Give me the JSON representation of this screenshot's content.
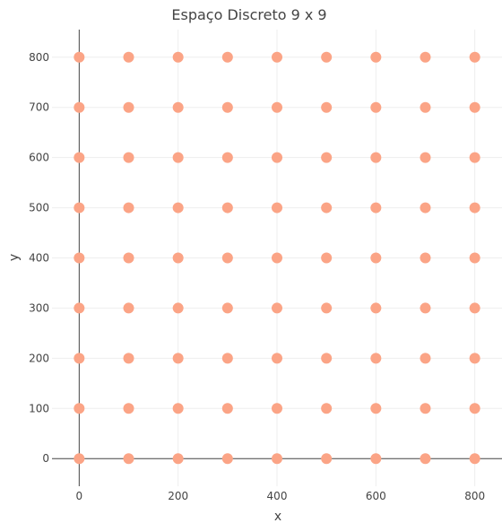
{
  "chart_data": {
    "type": "scatter",
    "title": "Espaço Discreto 9 x 9",
    "xlabel": "x",
    "ylabel": "y",
    "xlim": [
      -55,
      855
    ],
    "ylim": [
      -55,
      855
    ],
    "x_ticks": [
      0,
      200,
      400,
      600,
      800
    ],
    "y_ticks": [
      0,
      100,
      200,
      300,
      400,
      500,
      600,
      700,
      800
    ],
    "grid": true,
    "legend": "none",
    "marker_color": "#FBA486",
    "grid_color": "#EEEEEE",
    "zero_line_color": "#444444",
    "points": {
      "x": [
        0,
        100,
        200,
        300,
        400,
        500,
        600,
        700,
        800,
        0,
        100,
        200,
        300,
        400,
        500,
        600,
        700,
        800,
        0,
        100,
        200,
        300,
        400,
        500,
        600,
        700,
        800,
        0,
        100,
        200,
        300,
        400,
        500,
        600,
        700,
        800,
        0,
        100,
        200,
        300,
        400,
        500,
        600,
        700,
        800,
        0,
        100,
        200,
        300,
        400,
        500,
        600,
        700,
        800,
        0,
        100,
        200,
        300,
        400,
        500,
        600,
        700,
        800,
        0,
        100,
        200,
        300,
        400,
        500,
        600,
        700,
        800,
        0,
        100,
        200,
        300,
        400,
        500,
        600,
        700,
        800
      ],
      "y": [
        0,
        0,
        0,
        0,
        0,
        0,
        0,
        0,
        0,
        100,
        100,
        100,
        100,
        100,
        100,
        100,
        100,
        100,
        200,
        200,
        200,
        200,
        200,
        200,
        200,
        200,
        200,
        300,
        300,
        300,
        300,
        300,
        300,
        300,
        300,
        300,
        400,
        400,
        400,
        400,
        400,
        400,
        400,
        400,
        400,
        500,
        500,
        500,
        500,
        500,
        500,
        500,
        500,
        500,
        600,
        600,
        600,
        600,
        600,
        600,
        600,
        600,
        600,
        700,
        700,
        700,
        700,
        700,
        700,
        700,
        700,
        700,
        800,
        800,
        800,
        800,
        800,
        800,
        800,
        800,
        800
      ]
    }
  }
}
